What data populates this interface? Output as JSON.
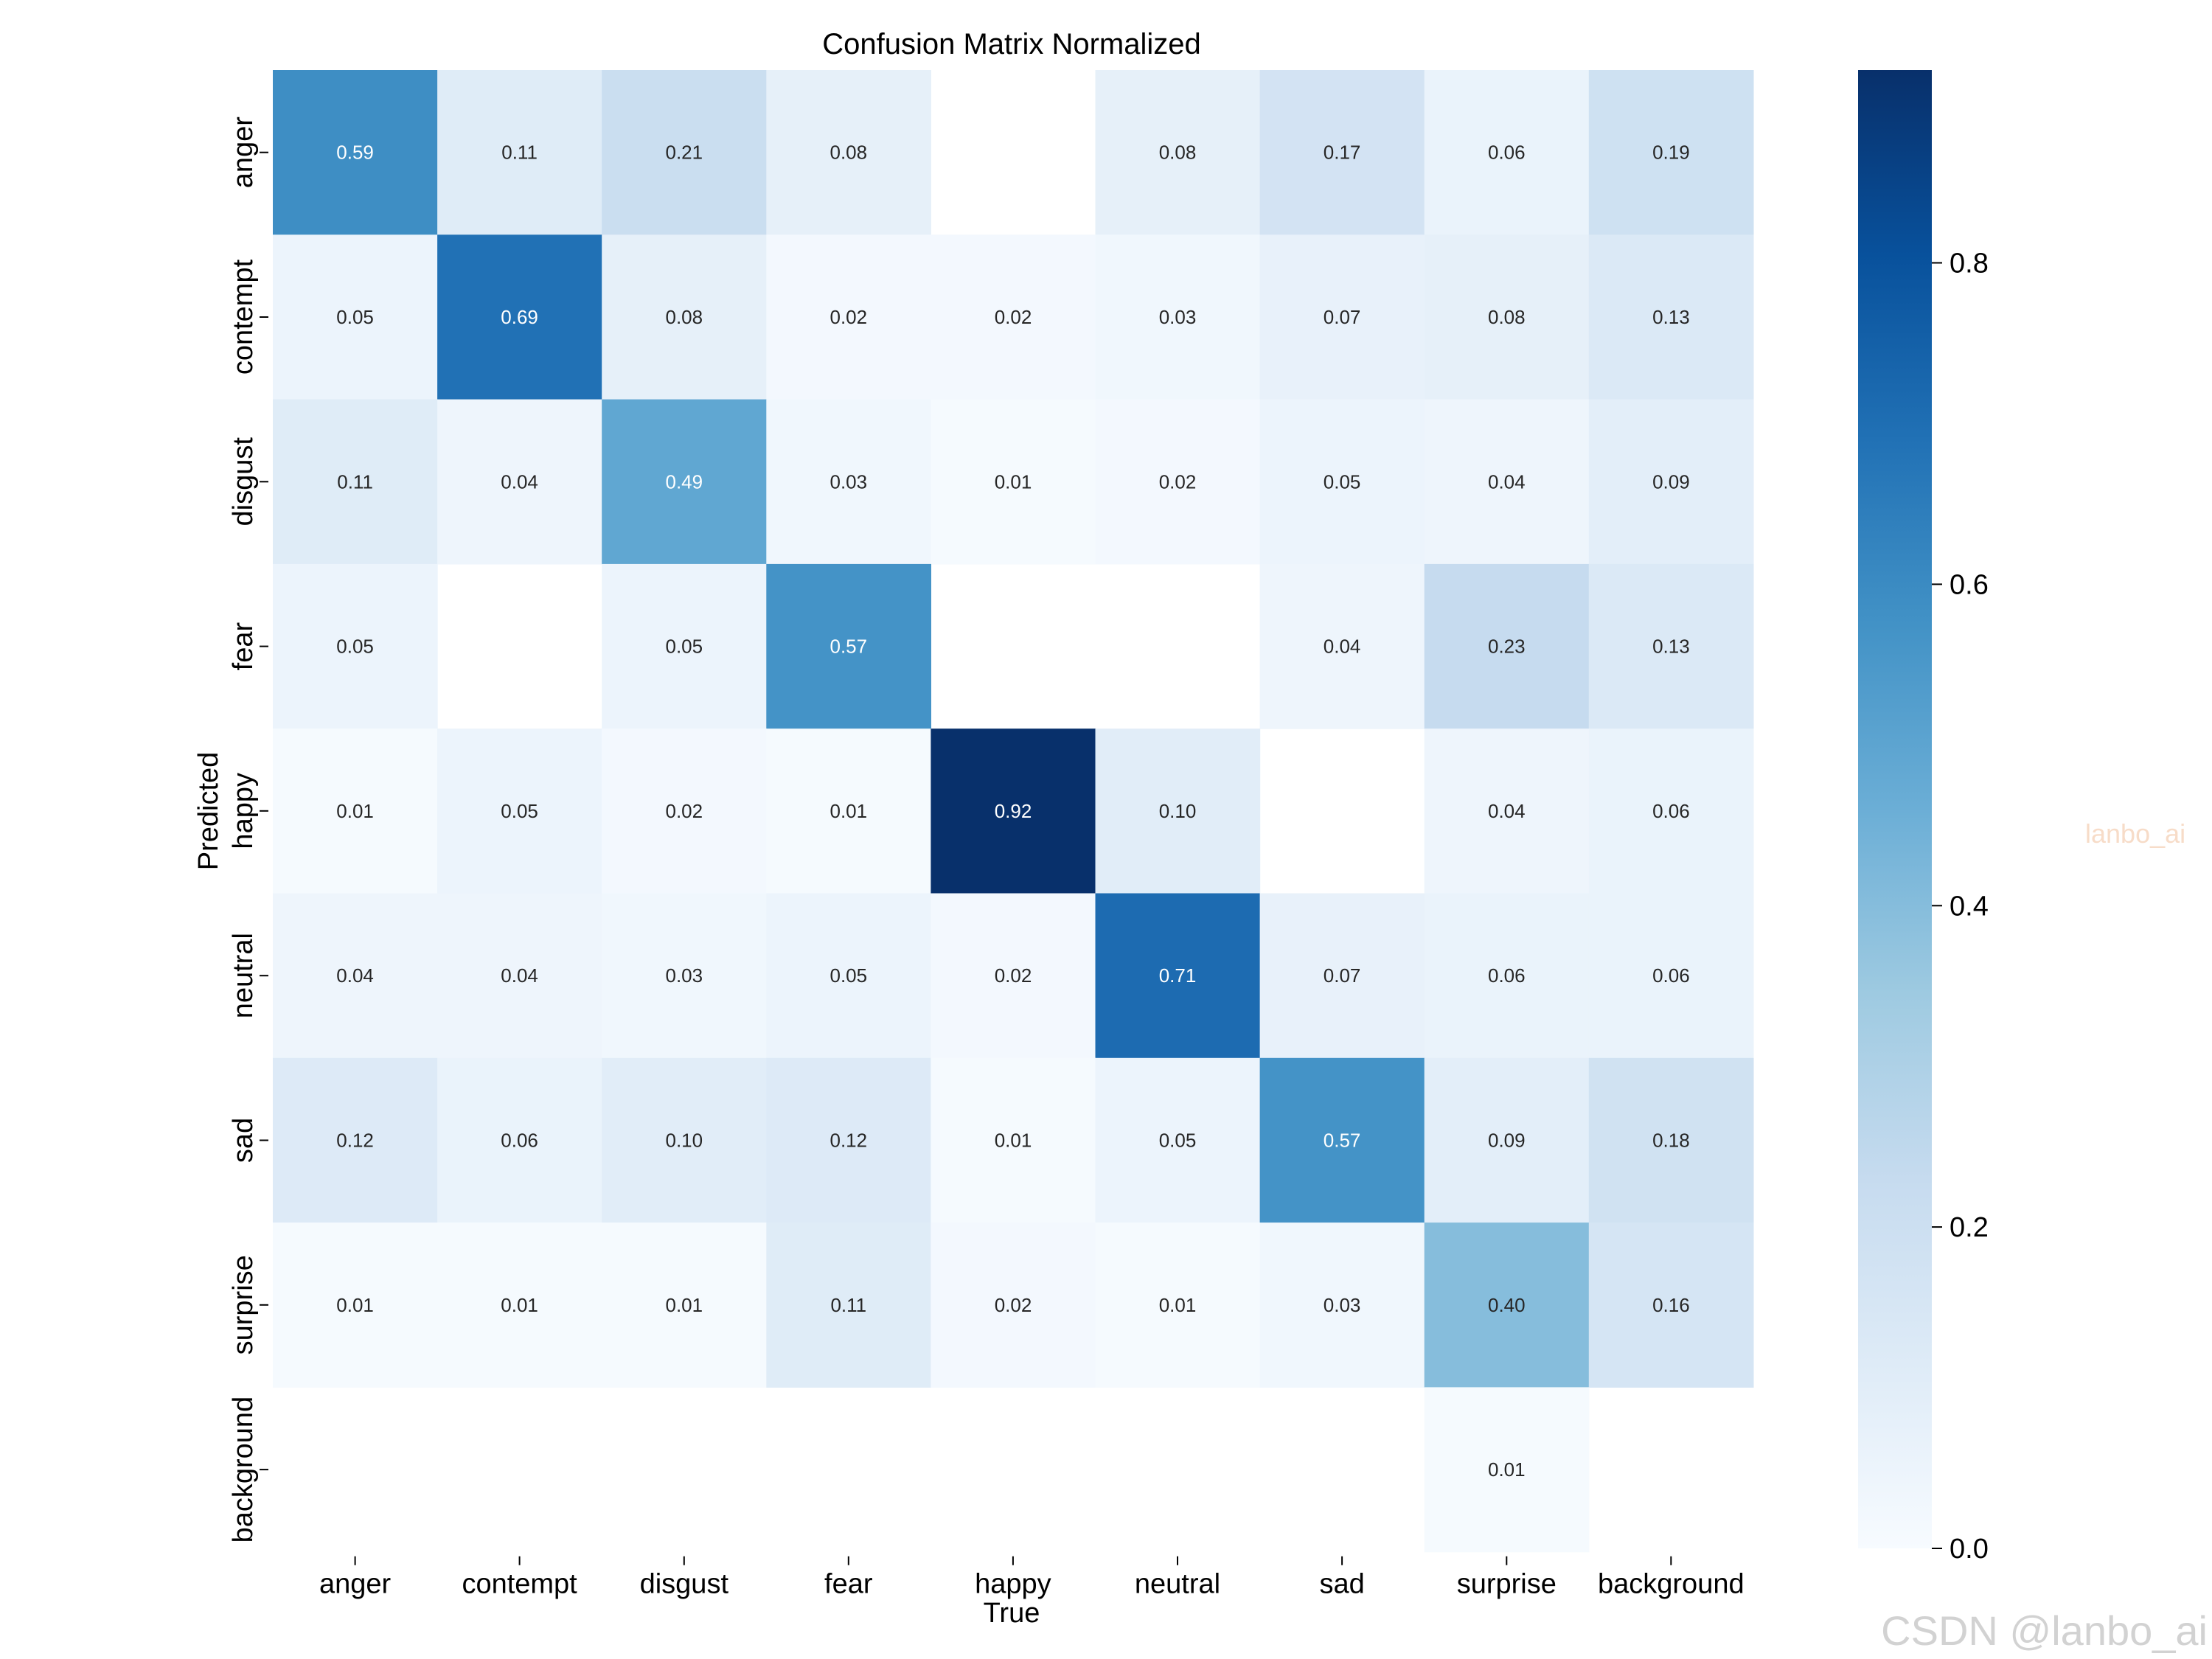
{
  "chart_data": {
    "type": "heatmap",
    "title": "Confusion Matrix Normalized",
    "xlabel": "True",
    "ylabel": "Predicted",
    "x_categories": [
      "anger",
      "contempt",
      "disgust",
      "fear",
      "happy",
      "neutral",
      "sad",
      "surprise",
      "background"
    ],
    "y_categories": [
      "anger",
      "contempt",
      "disgust",
      "fear",
      "happy",
      "neutral",
      "sad",
      "surprise",
      "background"
    ],
    "values": [
      [
        0.59,
        0.11,
        0.21,
        0.08,
        null,
        0.08,
        0.17,
        0.06,
        0.19
      ],
      [
        0.05,
        0.69,
        0.08,
        0.02,
        0.02,
        0.03,
        0.07,
        0.08,
        0.13
      ],
      [
        0.11,
        0.04,
        0.49,
        0.03,
        0.01,
        0.02,
        0.05,
        0.04,
        0.09
      ],
      [
        0.05,
        null,
        0.05,
        0.57,
        null,
        null,
        0.04,
        0.23,
        0.13
      ],
      [
        0.01,
        0.05,
        0.02,
        0.01,
        0.92,
        0.1,
        null,
        0.04,
        0.06
      ],
      [
        0.04,
        0.04,
        0.03,
        0.05,
        0.02,
        0.71,
        0.07,
        0.06,
        0.06
      ],
      [
        0.12,
        0.06,
        0.1,
        0.12,
        0.01,
        0.05,
        0.57,
        0.09,
        0.18
      ],
      [
        0.01,
        0.01,
        0.01,
        0.11,
        0.02,
        0.01,
        0.03,
        0.4,
        0.16
      ],
      [
        null,
        null,
        null,
        null,
        null,
        null,
        null,
        0.01,
        null
      ]
    ],
    "colorbar": {
      "colormap": "Blues",
      "vmin": 0.0,
      "vmax": 0.92,
      "ticks": [
        0.0,
        0.2,
        0.4,
        0.6,
        0.8
      ],
      "tick_labels": [
        "0.0",
        "0.2",
        "0.4",
        "0.6",
        "0.8"
      ]
    }
  },
  "watermarks": {
    "side": "lanbo_ai",
    "bottom": "CSDN @lanbo_ai"
  }
}
